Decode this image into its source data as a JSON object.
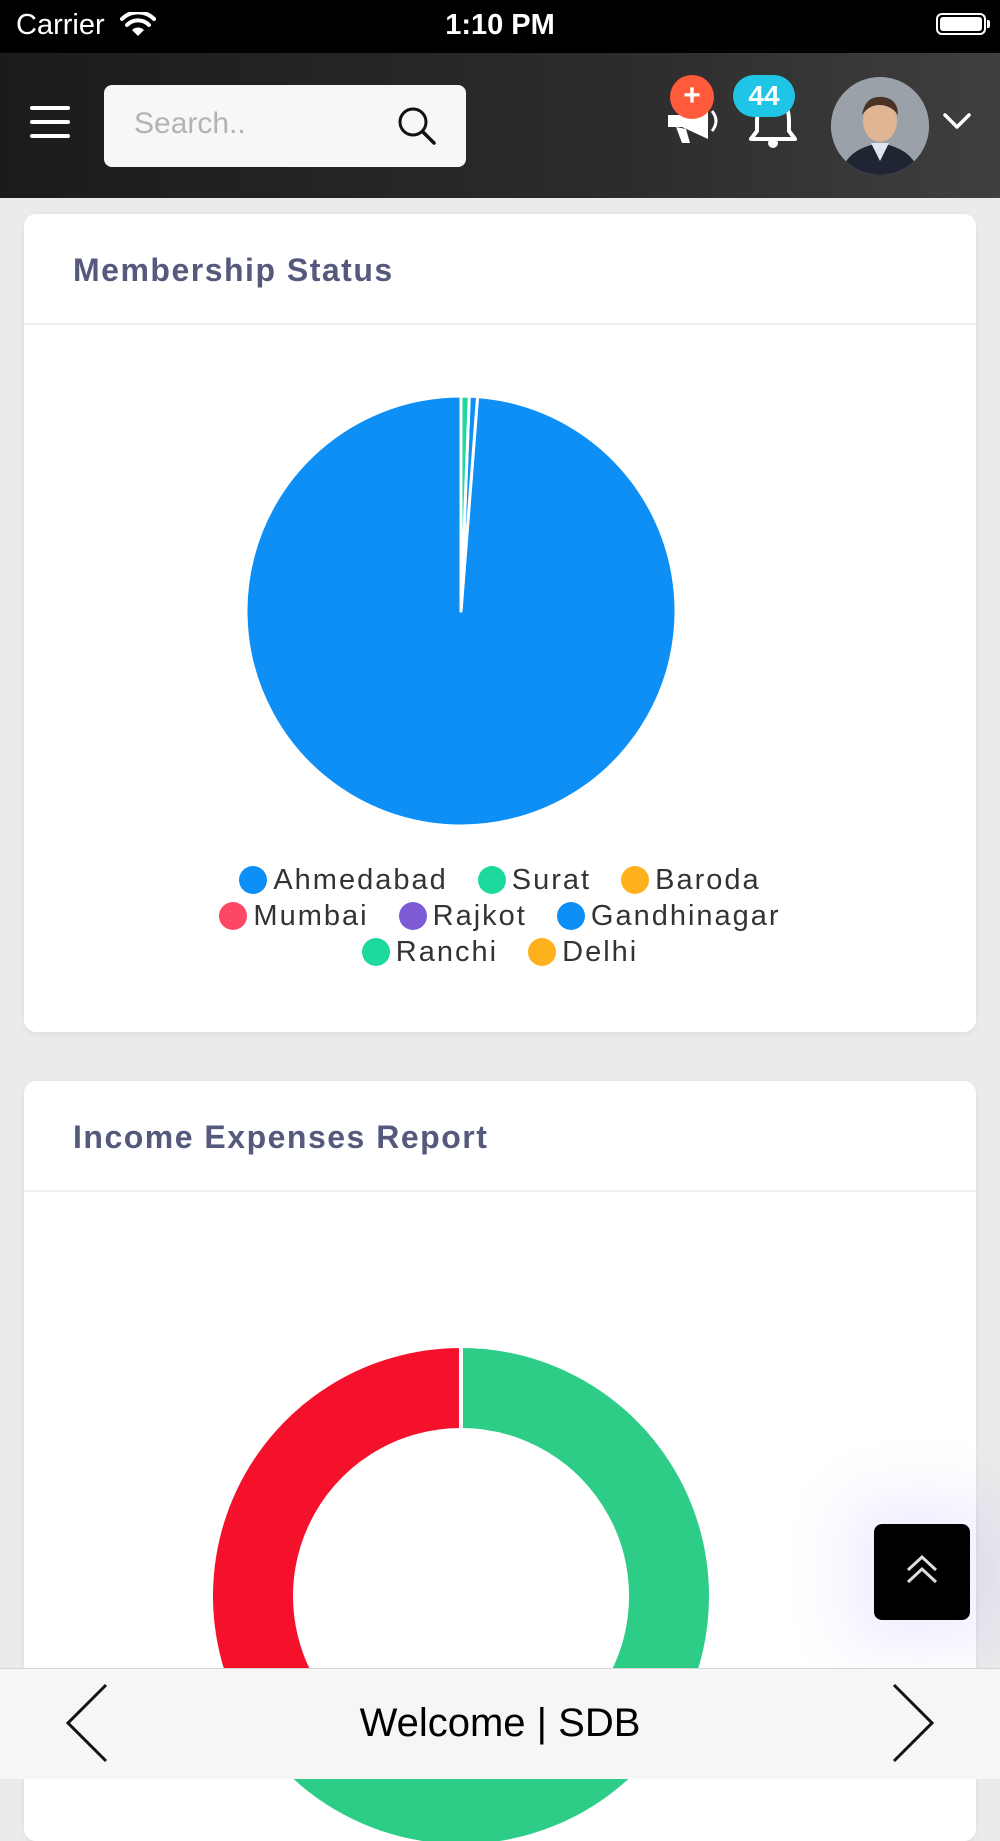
{
  "status_bar": {
    "carrier": "Carrier",
    "time": "1:10 PM"
  },
  "header": {
    "menu_icon": "hamburger-icon",
    "search": {
      "placeholder": "Search..",
      "icon": "search-icon"
    },
    "announcement": {
      "icon": "megaphone-icon",
      "badge": "+"
    },
    "notifications": {
      "icon": "bell-icon",
      "count": "44"
    },
    "profile": {
      "icon": "avatar",
      "dropdown_icon": "chevron-down-icon"
    }
  },
  "membership_card": {
    "title": "Membership Status",
    "legend": [
      {
        "label": "Ahmedabad",
        "color": "#0e8ff5"
      },
      {
        "label": "Surat",
        "color": "#1ed99d"
      },
      {
        "label": "Baroda",
        "color": "#ffb01d"
      },
      {
        "label": "Mumbai",
        "color": "#fd4766"
      },
      {
        "label": "Rajkot",
        "color": "#7d5bd4"
      },
      {
        "label": "Gandhinagar",
        "color": "#0e8ff5"
      },
      {
        "label": "Ranchi",
        "color": "#1ed99d"
      },
      {
        "label": "Delhi",
        "color": "#ffb01d"
      }
    ]
  },
  "income_card": {
    "title": "Income Expenses Report"
  },
  "chart_data": [
    {
      "type": "pie",
      "title": "Membership Status",
      "categories": [
        "Ahmedabad",
        "Surat",
        "Baroda",
        "Mumbai",
        "Rajkot",
        "Gandhinagar",
        "Ranchi",
        "Delhi"
      ],
      "values": [
        96.6,
        0,
        0,
        0,
        0,
        0.6,
        0.6,
        0
      ],
      "colors": [
        "#0e8ff5",
        "#1ed99d",
        "#ffb01d",
        "#fd4766",
        "#7d5bd4",
        "#0e8ff5",
        "#1ed99d",
        "#ffb01d"
      ],
      "legend": "bottom"
    },
    {
      "type": "pie",
      "title": "Income Expenses Report",
      "donut": true,
      "values": [
        64,
        36
      ],
      "colors": [
        "#2ecd87",
        "#f5102b"
      ]
    }
  ],
  "bottom_bar": {
    "title": "Welcome | SDB",
    "back_icon": "chevron-left-icon",
    "forward_icon": "chevron-right-icon"
  },
  "scroll_top": {
    "icon": "double-chevron-up-icon"
  }
}
